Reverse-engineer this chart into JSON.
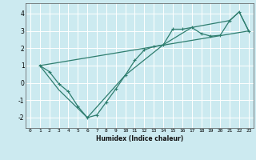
{
  "xlabel": "Humidex (Indice chaleur)",
  "ylabel": "",
  "background_color": "#cceaf0",
  "grid_color": "#ffffff",
  "line_color": "#2e7d6e",
  "xlim": [
    -0.5,
    23.5
  ],
  "ylim": [
    -2.6,
    4.6
  ],
  "xticks": [
    0,
    1,
    2,
    3,
    4,
    5,
    6,
    7,
    8,
    9,
    10,
    11,
    12,
    13,
    14,
    15,
    16,
    17,
    18,
    19,
    20,
    21,
    22,
    23
  ],
  "yticks": [
    -2,
    -1,
    0,
    1,
    2,
    3,
    4
  ],
  "curve1_x": [
    1,
    2,
    3,
    4,
    5,
    6,
    7,
    8,
    9,
    10,
    11,
    12,
    13,
    14,
    15,
    16,
    17,
    18,
    19,
    20,
    21,
    22,
    23
  ],
  "curve1_y": [
    1.0,
    0.65,
    -0.05,
    -0.5,
    -1.35,
    -2.0,
    -1.85,
    -1.1,
    -0.35,
    0.45,
    1.3,
    1.9,
    2.1,
    2.2,
    3.1,
    3.1,
    3.2,
    2.85,
    2.7,
    2.75,
    3.6,
    4.1,
    3.0
  ],
  "curve2_x": [
    1,
    3,
    6,
    10,
    14,
    17,
    21,
    22,
    23
  ],
  "curve2_y": [
    1.0,
    -0.4,
    -2.0,
    0.45,
    2.2,
    3.2,
    3.6,
    4.1,
    3.0
  ],
  "curve3_x": [
    1,
    23
  ],
  "curve3_y": [
    1.0,
    3.0
  ]
}
